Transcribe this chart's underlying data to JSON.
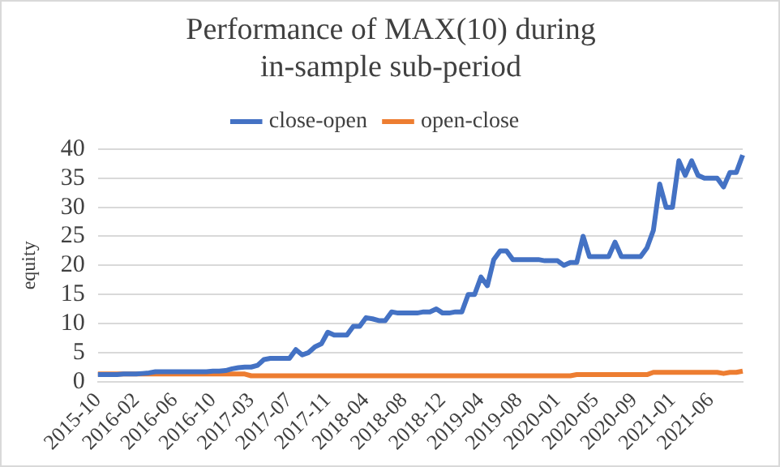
{
  "chart_data": {
    "type": "line",
    "title": "Performance of MAX(10)  during in-sample sub-period",
    "ylabel": "equity",
    "categories": [
      "2015-10",
      null,
      null,
      null,
      null,
      null,
      "2016-02",
      null,
      null,
      null,
      null,
      null,
      "2016-06",
      null,
      null,
      null,
      null,
      null,
      "2016-10",
      null,
      null,
      null,
      null,
      null,
      "2017-03",
      null,
      null,
      null,
      null,
      null,
      "2017-07",
      null,
      null,
      null,
      null,
      null,
      "2017-11",
      null,
      null,
      null,
      null,
      null,
      "2018-04",
      null,
      null,
      null,
      null,
      null,
      "2018-08",
      null,
      null,
      null,
      null,
      null,
      "2018-12",
      null,
      null,
      null,
      null,
      null,
      "2019-04",
      null,
      null,
      null,
      null,
      null,
      "2019-08",
      null,
      null,
      null,
      null,
      null,
      "2020-01",
      null,
      null,
      null,
      null,
      null,
      "2020-05",
      null,
      null,
      null,
      null,
      null,
      "2020-09",
      null,
      null,
      null,
      null,
      null,
      "2021-01",
      null,
      null,
      null,
      null,
      null,
      "2021-06",
      null,
      null,
      null,
      null,
      null
    ],
    "series": [
      {
        "name": "close-open",
        "color": "#4472c4",
        "values": [
          1.2,
          1.2,
          1.2,
          1.2,
          1.3,
          1.3,
          1.3,
          1.4,
          1.5,
          1.7,
          1.7,
          1.7,
          1.7,
          1.7,
          1.7,
          1.7,
          1.7,
          1.7,
          1.8,
          1.8,
          1.9,
          2.2,
          2.4,
          2.5,
          2.5,
          2.8,
          3.8,
          4,
          4,
          4,
          4,
          5.5,
          4.6,
          5,
          6,
          6.5,
          8.5,
          8,
          8,
          8,
          9.5,
          9.5,
          11,
          10.8,
          10.5,
          10.5,
          12,
          11.8,
          11.8,
          11.8,
          11.8,
          12,
          12,
          12.5,
          11.8,
          11.8,
          12,
          12,
          15,
          15,
          18,
          16.5,
          21,
          22.5,
          22.5,
          21,
          21,
          21,
          21,
          21,
          20.8,
          20.8,
          20.8,
          20,
          20.5,
          20.5,
          25,
          21.5,
          21.5,
          21.5,
          21.5,
          24,
          21.5,
          21.5,
          21.5,
          21.5,
          23,
          26,
          34,
          30,
          30,
          38,
          35.5,
          38,
          35.5,
          35,
          35,
          35,
          33.5,
          36,
          36,
          39
        ]
      },
      {
        "name": "open-close",
        "color": "#ed7d31",
        "values": [
          1.3,
          1.3,
          1.3,
          1.3,
          1.3,
          1.3,
          1.3,
          1.3,
          1.3,
          1.3,
          1.3,
          1.3,
          1.3,
          1.3,
          1.3,
          1.3,
          1.3,
          1.3,
          1.3,
          1.3,
          1.3,
          1.3,
          1.3,
          1.3,
          1,
          1,
          1,
          1,
          1,
          1,
          1,
          1,
          1,
          1,
          1,
          1,
          1,
          1,
          1,
          1,
          1,
          1,
          1,
          1,
          1,
          1,
          1,
          1,
          1,
          1,
          1,
          1,
          1,
          1,
          1,
          1,
          1,
          1,
          1,
          1,
          1,
          1,
          1,
          1,
          1,
          1,
          1,
          1,
          1,
          1,
          1,
          1,
          1,
          1,
          1,
          1.2,
          1.2,
          1.2,
          1.2,
          1.2,
          1.2,
          1.2,
          1.2,
          1.2,
          1.2,
          1.2,
          1.2,
          1.6,
          1.6,
          1.6,
          1.6,
          1.6,
          1.6,
          1.6,
          1.6,
          1.6,
          1.6,
          1.6,
          1.4,
          1.6,
          1.6,
          1.8
        ]
      }
    ],
    "ylim": [
      0,
      40
    ],
    "yticks": [
      0,
      5,
      10,
      15,
      20,
      25,
      30,
      35,
      40
    ],
    "grid": "y",
    "legend": "top",
    "marker": "none",
    "line_style": "solid"
  }
}
